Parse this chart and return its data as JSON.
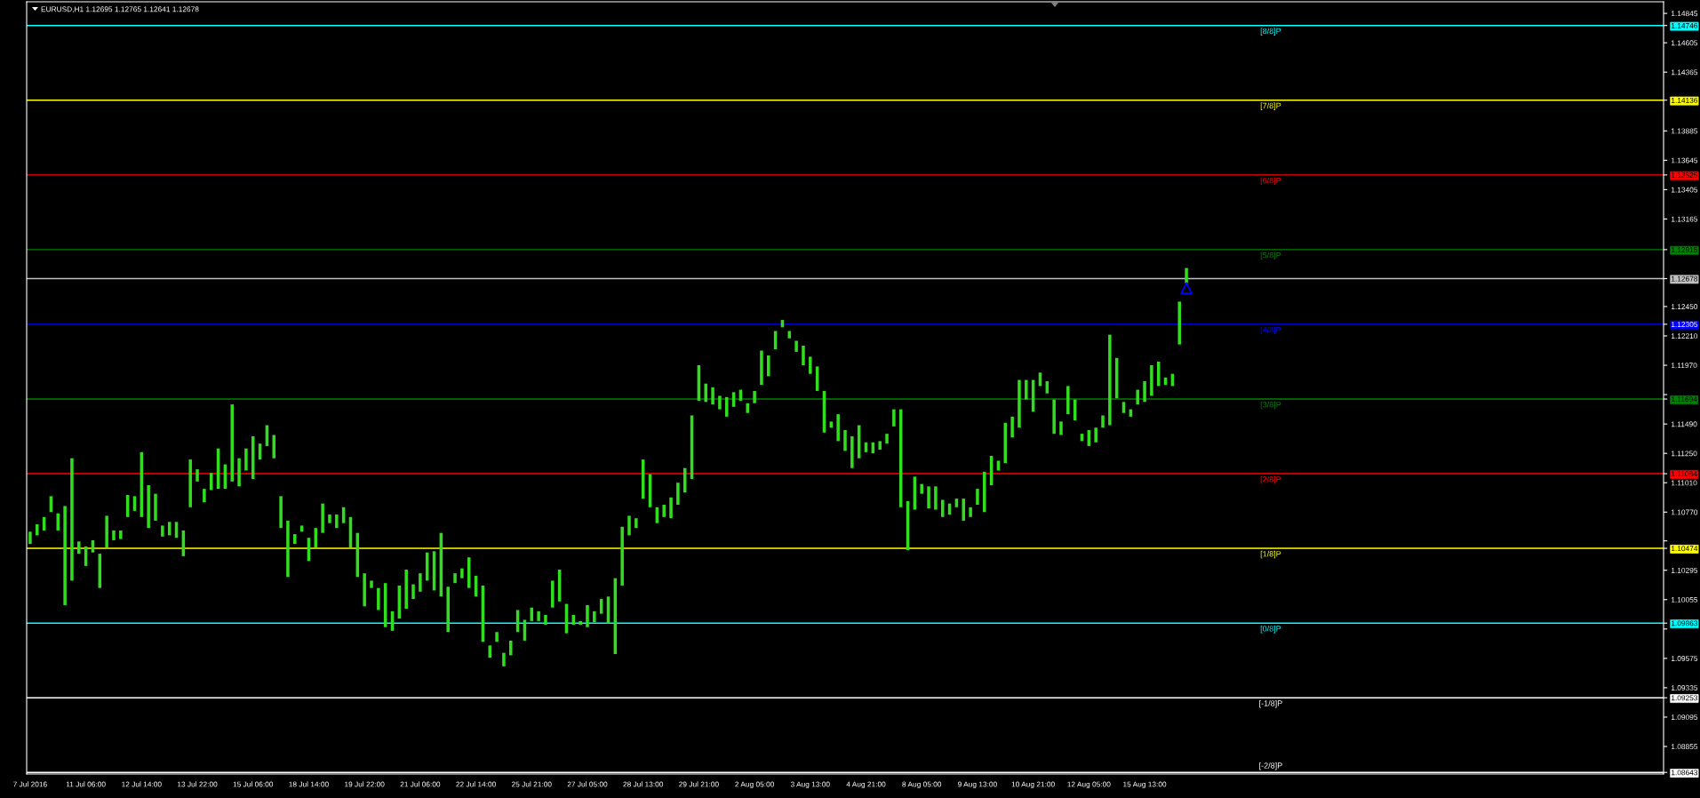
{
  "chart_data": {
    "type": "bar",
    "title": "EURUSD,H1 1.12695 1.12765 1.12641 1.12678",
    "categories": [
      "7 Jul 2016",
      null,
      null,
      null,
      null,
      null,
      null,
      null,
      "11 Jul 06:00",
      null,
      null,
      null,
      null,
      null,
      null,
      null,
      "12 Jul 14:00",
      null,
      null,
      null,
      null,
      null,
      null,
      null,
      "13 Jul 22:00",
      null,
      null,
      null,
      null,
      null,
      null,
      null,
      "15 Jul 06:00",
      null,
      null,
      null,
      null,
      null,
      null,
      null,
      "18 Jul 14:00",
      null,
      null,
      null,
      null,
      null,
      null,
      null,
      "19 Jul 22:00",
      null,
      null,
      null,
      null,
      null,
      null,
      null,
      "21 Jul 06:00",
      null,
      null,
      null,
      null,
      null,
      null,
      null,
      "22 Jul 14:00",
      null,
      null,
      null,
      null,
      null,
      null,
      null,
      "25 Jul 21:00",
      null,
      null,
      null,
      null,
      null,
      null,
      null,
      "27 Jul 05:00",
      null,
      null,
      null,
      null,
      null,
      null,
      null,
      "28 Jul 13:00",
      null,
      null,
      null,
      null,
      null,
      null,
      null,
      "29 Jul 21:00",
      null,
      null,
      null,
      null,
      null,
      null,
      null,
      "2 Aug 05:00",
      null,
      null,
      null,
      null,
      null,
      null,
      null,
      "3 Aug 13:00",
      null,
      null,
      null,
      null,
      null,
      null,
      null,
      "4 Aug 21:00",
      null,
      null,
      null,
      null,
      null,
      null,
      null,
      "8 Aug 05:00",
      null,
      null,
      null,
      null,
      null,
      null,
      null,
      "9 Aug 13:00",
      null,
      null,
      null,
      null,
      null,
      null,
      null,
      "10 Aug 21:00",
      null,
      null,
      null,
      null,
      null,
      null,
      null,
      "12 Aug 05:00",
      null,
      null,
      null,
      null,
      null,
      null,
      null,
      "15 Aug 13:00",
      null,
      null,
      null,
      null,
      null,
      null,
      null,
      null,
      null,
      null,
      null,
      null,
      null,
      null,
      null,
      null,
      null,
      null,
      null,
      null,
      null,
      null,
      null,
      null,
      null,
      null,
      null,
      null,
      null,
      null,
      null,
      null,
      null,
      null,
      null,
      null,
      null,
      null,
      null,
      null,
      null,
      null,
      null,
      null,
      null,
      null,
      null,
      null,
      null,
      null,
      null,
      null,
      null,
      null,
      null,
      null,
      null,
      null,
      null,
      null,
      null,
      null,
      null,
      null,
      null,
      null,
      null,
      null,
      null,
      null,
      null,
      null,
      null,
      null
    ],
    "series": [
      {
        "color": "#32dc1e",
        "base": [
          1.1051,
          1.1058,
          1.1062,
          1.1077,
          1.1062,
          1.1001,
          1.1021,
          1.1043,
          1.1033,
          1.1044,
          1.1015,
          1.1048,
          1.1054,
          1.1055,
          1.1073,
          1.1078,
          1.1073,
          1.1064,
          1.107,
          1.1057,
          1.1058,
          1.1056,
          1.1041,
          1.1081,
          1.1102,
          1.1085,
          1.1095,
          1.1096,
          1.1096,
          1.1102,
          1.1098,
          1.1111,
          1.1104,
          1.112,
          1.1131,
          1.1121,
          1.1064,
          1.1024,
          1.1051,
          1.1061,
          1.1037,
          1.1048,
          1.106,
          1.1068,
          1.1064,
          1.1068,
          1.1048,
          1.1024,
          1.1,
          1.1015,
          1.0997,
          1.0983,
          1.098,
          1.099,
          1.0998,
          1.1006,
          1.1012,
          1.1021,
          1.1013,
          1.1008,
          1.0979,
          1.1019,
          1.1023,
          1.1015,
          1.1008,
          1.0971,
          1.0958,
          1.0971,
          1.0951,
          1.096,
          1.0979,
          1.0972,
          1.0988,
          1.0988,
          1.0985,
          1.0999,
          1.1004,
          1.0978,
          1.0985,
          1.0985,
          1.0983,
          1.0987,
          1.0994,
          1.0986,
          1.0961,
          1.1017,
          1.1058,
          1.1064,
          1.1088,
          1.1081,
          1.1068,
          1.1073,
          1.1072,
          1.1083,
          1.1093,
          1.1104,
          1.1168,
          1.1167,
          1.1165,
          1.1161,
          1.1155,
          1.1163,
          1.1168,
          1.1158,
          1.1166,
          1.1181,
          1.1188,
          1.121,
          1.1228,
          1.1219,
          1.1208,
          1.1197,
          1.119,
          1.1176,
          1.1142,
          1.1146,
          1.1135,
          1.1127,
          1.1113,
          1.1121,
          1.1126,
          1.1125,
          1.1128,
          1.1133,
          1.1147,
          1.1081,
          1.1046,
          1.1079,
          1.1092,
          1.108,
          1.1079,
          1.1073,
          1.1075,
          1.1081,
          1.107,
          1.1073,
          1.1083,
          1.1077,
          1.1099,
          1.1111,
          1.1117,
          1.1138,
          1.1146,
          1.1169,
          1.1159,
          1.118,
          1.1174,
          1.1141,
          1.114,
          1.1157,
          1.1152,
          1.1135,
          1.1131,
          1.1134,
          1.1146,
          1.1148,
          1.117,
          1.1158,
          1.1155,
          1.1165,
          1.1167,
          1.1172,
          1.118,
          1.1181,
          1.118,
          1.1214,
          1.12641,
          null,
          null,
          null,
          null,
          null,
          null,
          null,
          null,
          null,
          null,
          null,
          null,
          null,
          null,
          null,
          null,
          null,
          null,
          null,
          null,
          null,
          null,
          null,
          null,
          null,
          null,
          null,
          null,
          null,
          null,
          null,
          null,
          null,
          null,
          null,
          null,
          null,
          null,
          null,
          null,
          null,
          null,
          null,
          null,
          null,
          null,
          null,
          null,
          null,
          null,
          null,
          null,
          null,
          null,
          null,
          null,
          null,
          null,
          null,
          null,
          null,
          null,
          null,
          null,
          null,
          null,
          null,
          null
        ],
        "values": [
          0.001,
          0.0009,
          0.0011,
          0.0013,
          0.0014,
          0.0081,
          0.01,
          0.001,
          0.0016,
          0.001,
          0.0028,
          0.0026,
          0.0008,
          0.0007,
          0.0018,
          0.0012,
          0.0053,
          0.0035,
          0.0022,
          0.0009,
          0.0011,
          0.0013,
          0.0021,
          0.0039,
          0.001,
          0.0011,
          0.0014,
          0.0033,
          0.002,
          0.0063,
          0.0023,
          0.0018,
          0.0035,
          0.0013,
          0.0017,
          0.0019,
          0.0026,
          0.0046,
          0.0008,
          0.0005,
          0.0019,
          0.0016,
          0.0024,
          0.0007,
          0.0011,
          0.0013,
          0.0025,
          0.0036,
          0.0027,
          0.0006,
          0.0018,
          0.0036,
          0.0016,
          0.0027,
          0.0032,
          0.0012,
          0.0015,
          0.0023,
          0.0032,
          0.0052,
          0.0037,
          0.0008,
          0.0008,
          0.0025,
          0.0017,
          0.0046,
          0.001,
          0.0008,
          0.0011,
          0.0012,
          0.0018,
          0.0017,
          0.0011,
          0.0008,
          0.0008,
          0.0022,
          0.0026,
          0.0024,
          0.0008,
          0.0003,
          0.0018,
          0.0009,
          0.0012,
          0.0022,
          0.0062,
          0.0048,
          0.0016,
          0.0008,
          0.0032,
          0.0027,
          0.0013,
          0.001,
          0.0017,
          0.0018,
          0.002,
          0.0052,
          0.0029,
          0.0015,
          0.0014,
          0.0011,
          0.0016,
          0.0012,
          0.0009,
          0.0008,
          0.001,
          0.0028,
          0.0017,
          0.0015,
          0.0006,
          0.0006,
          0.0009,
          0.0016,
          0.0014,
          0.002,
          0.0034,
          0.0005,
          0.0022,
          0.0017,
          0.0026,
          0.0027,
          0.0008,
          0.0009,
          0.0007,
          0.0008,
          0.0014,
          0.008,
          0.004,
          0.0027,
          0.0008,
          0.0018,
          0.0019,
          0.0014,
          0.0009,
          0.0007,
          0.0018,
          0.0008,
          0.0013,
          0.0033,
          0.0024,
          0.0008,
          0.0033,
          0.0017,
          0.0039,
          0.0016,
          0.0026,
          0.0011,
          0.001,
          0.0028,
          0.0011,
          0.0023,
          0.0017,
          0.0006,
          0.0013,
          0.0012,
          0.001,
          0.0074,
          0.0033,
          0.0009,
          0.0006,
          0.0012,
          0.0017,
          0.0025,
          0.002,
          0.0006,
          0.001,
          0.0035,
          0.00124,
          null,
          null,
          null,
          null,
          null,
          null,
          null,
          null,
          null,
          null,
          null,
          null,
          null,
          null,
          null,
          null,
          null,
          null,
          null,
          null,
          null,
          null,
          null,
          null,
          null,
          null,
          null,
          null,
          null,
          null,
          null,
          null,
          null,
          null,
          null,
          null,
          null,
          null,
          null,
          null,
          null,
          null,
          null,
          null,
          null,
          null,
          null,
          null,
          null,
          null,
          null,
          null,
          null,
          null,
          null,
          null,
          null,
          null,
          null,
          null,
          null,
          null,
          null,
          null,
          null,
          null,
          null,
          null
        ]
      },
      {
        "type": "scatter",
        "color": "#0000ff",
        "marker": "triangle",
        "values": [
          null,
          null,
          null,
          null,
          null,
          null,
          null,
          null,
          null,
          null,
          null,
          null,
          null,
          null,
          null,
          null,
          null,
          null,
          null,
          null,
          null,
          null,
          null,
          null,
          null,
          null,
          null,
          null,
          null,
          null,
          null,
          null,
          null,
          null,
          null,
          null,
          null,
          null,
          null,
          null,
          null,
          null,
          null,
          null,
          null,
          null,
          null,
          null,
          null,
          null,
          null,
          null,
          null,
          null,
          null,
          null,
          null,
          null,
          null,
          null,
          null,
          null,
          null,
          null,
          null,
          null,
          null,
          null,
          null,
          null,
          null,
          null,
          null,
          null,
          null,
          null,
          null,
          null,
          null,
          null,
          null,
          null,
          null,
          null,
          null,
          null,
          null,
          null,
          null,
          null,
          null,
          null,
          null,
          null,
          null,
          null,
          null,
          null,
          null,
          null,
          null,
          null,
          null,
          null,
          null,
          null,
          null,
          null,
          null,
          null,
          null,
          null,
          null,
          null,
          null,
          null,
          null,
          null,
          null,
          null,
          null,
          null,
          null,
          null,
          null,
          null,
          null,
          null,
          null,
          null,
          null,
          null,
          null,
          null,
          null,
          null,
          null,
          null,
          null,
          null,
          null,
          null,
          null,
          null,
          null,
          null,
          null,
          null,
          null,
          null,
          null,
          null,
          null,
          null,
          null,
          null,
          null,
          null,
          null,
          null,
          null,
          null,
          null,
          null,
          null,
          null,
          1.126,
          null,
          null,
          null,
          null,
          null,
          null,
          null,
          null,
          null,
          null,
          null,
          null,
          null,
          null,
          null,
          null,
          null,
          null,
          null,
          null,
          null,
          null,
          null,
          null,
          null,
          null,
          null,
          null,
          null,
          null,
          null,
          null,
          null,
          null,
          null,
          null,
          null,
          null,
          null,
          null,
          null,
          null,
          null,
          null,
          null,
          null,
          null,
          null,
          null,
          null,
          null,
          null,
          null,
          null,
          null,
          null,
          null,
          null,
          null,
          null,
          null,
          null,
          null,
          null,
          null,
          null,
          null,
          null
        ]
      }
    ],
    "ylim": [
      1.0863,
      1.1494
    ],
    "yticks": [
      1.14845,
      1.14746,
      1.14605,
      1.14365,
      1.14136,
      1.13885,
      1.13645,
      1.13525,
      1.13405,
      1.13165,
      1.12915,
      1.12678,
      {
        "value": 1.1245,
        "label": "1.12450"
      },
      1.12305,
      {
        "value": 1.1221,
        "label": "1.12210"
      },
      {
        "value": 1.1197,
        "label": "1.11970"
      },
      {
        "value": 1.1173,
        "label": null
      },
      1.11694,
      {
        "value": 1.1149,
        "label": "1.11490"
      },
      {
        "value": 1.1125,
        "label": "1.11250"
      },
      1.11084,
      {
        "value": 1.1101,
        "label": "1.11010"
      },
      {
        "value": 1.1077,
        "label": "1.10770"
      },
      {
        "value": 1.10535,
        "label": null
      },
      1.10474,
      1.10295,
      1.10055,
      1.09863,
      {
        "value": 1.09815,
        "label": null
      },
      1.09575,
      1.09335,
      1.09253,
      1.09095,
      1.08855,
      1.08643
    ],
    "ref_lines": [
      {
        "axis": "y",
        "value": 1.14746,
        "label": "[8/8]P",
        "color": "#00ffff"
      },
      {
        "axis": "y",
        "value": 1.14136,
        "label": "[7/8]P",
        "color": "#ffff00"
      },
      {
        "axis": "y",
        "value": 1.13525,
        "label": "[6/8]P",
        "color": "#ff0000"
      },
      {
        "axis": "y",
        "value": 1.12915,
        "label": "[5/8]P",
        "color": "#008000"
      },
      {
        "axis": "y",
        "value": 1.12678,
        "color": "#c0c0c0"
      },
      {
        "axis": "y",
        "value": 1.12305,
        "label": "[4/8]P",
        "color": "#0000ff"
      },
      {
        "axis": "y",
        "value": 1.11694,
        "label": "[3/8]P",
        "color": "#008000"
      },
      {
        "axis": "y",
        "value": 1.11084,
        "label": "[2/8]P",
        "color": "#ff0000"
      },
      {
        "axis": "y",
        "value": 1.10474,
        "label": "[1/8]P",
        "color": "#ffff00"
      },
      {
        "axis": "y",
        "value": 1.09863,
        "label": "[0/8]P",
        "color": "#00ffff"
      },
      {
        "axis": "y",
        "value": 1.09253,
        "label": "[-1/8]P",
        "color": "#ffffff"
      },
      {
        "axis": "y",
        "value": 1.08643,
        "label": "[-2/8]P",
        "color": "#ffffff"
      }
    ]
  }
}
